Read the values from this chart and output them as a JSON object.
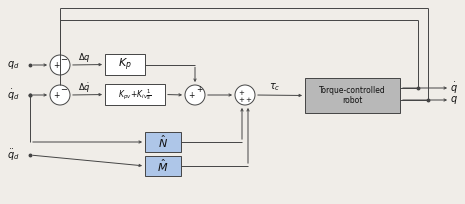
{
  "bg_color": "#f0ede8",
  "line_color": "#444444",
  "box_fill_white": "#ffffff",
  "box_fill_blue": "#aec6e8",
  "box_stroke": "#444444",
  "robot_fill": "#b8b8b8",
  "text_color": "#111111",
  "lw": 0.7
}
